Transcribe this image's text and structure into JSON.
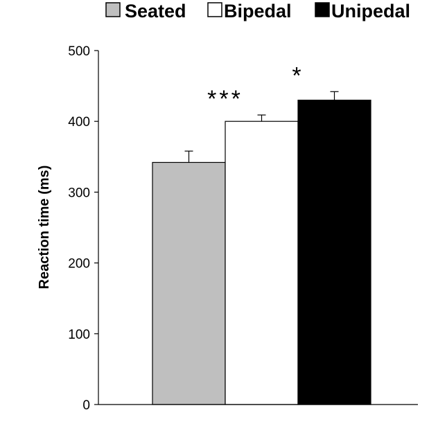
{
  "chart_data": {
    "type": "bar",
    "title": "",
    "xlabel": "",
    "ylabel": "Reaction time (ms)",
    "ylim": [
      0,
      500
    ],
    "yticks": [
      0,
      100,
      200,
      300,
      400,
      500
    ],
    "grid": false,
    "legend_position": "top",
    "categories": [
      "Seated",
      "Bipedal",
      "Unipedal"
    ],
    "values": [
      342,
      400,
      430
    ],
    "errors": [
      16,
      9,
      12
    ],
    "colors": [
      "#bfbfbf",
      "#ffffff",
      "#000000"
    ],
    "significance": [
      "",
      "***",
      "*"
    ]
  }
}
